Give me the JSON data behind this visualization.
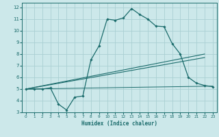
{
  "xlabel": "Humidex (Indice chaleur)",
  "bg_color": "#cce8ea",
  "grid_color": "#aad0d3",
  "line_color": "#1a6b6b",
  "xlim": [
    -0.5,
    23.5
  ],
  "ylim": [
    3,
    12.4
  ],
  "xticks": [
    0,
    1,
    2,
    3,
    4,
    5,
    6,
    7,
    8,
    9,
    10,
    11,
    12,
    13,
    14,
    15,
    16,
    17,
    18,
    19,
    20,
    21,
    22,
    23
  ],
  "yticks": [
    3,
    4,
    5,
    6,
    7,
    8,
    9,
    10,
    11,
    12
  ],
  "main_x": [
    0,
    1,
    2,
    3,
    4,
    5,
    6,
    7,
    8,
    9,
    10,
    11,
    12,
    13,
    14,
    15,
    16,
    17,
    18,
    19,
    20,
    21,
    22,
    23
  ],
  "main_y": [
    5.0,
    5.0,
    5.0,
    5.1,
    3.7,
    3.2,
    4.3,
    4.4,
    7.5,
    8.7,
    11.0,
    10.9,
    11.1,
    11.9,
    11.4,
    11.0,
    10.4,
    10.35,
    8.9,
    8.0,
    6.0,
    5.5,
    5.3,
    5.2
  ],
  "line1_x": [
    0,
    23
  ],
  "line1_y": [
    5.0,
    5.25
  ],
  "line2_x": [
    0,
    22
  ],
  "line2_y": [
    5.0,
    7.7
  ],
  "line3_x": [
    0,
    22
  ],
  "line3_y": [
    5.0,
    8.0
  ]
}
